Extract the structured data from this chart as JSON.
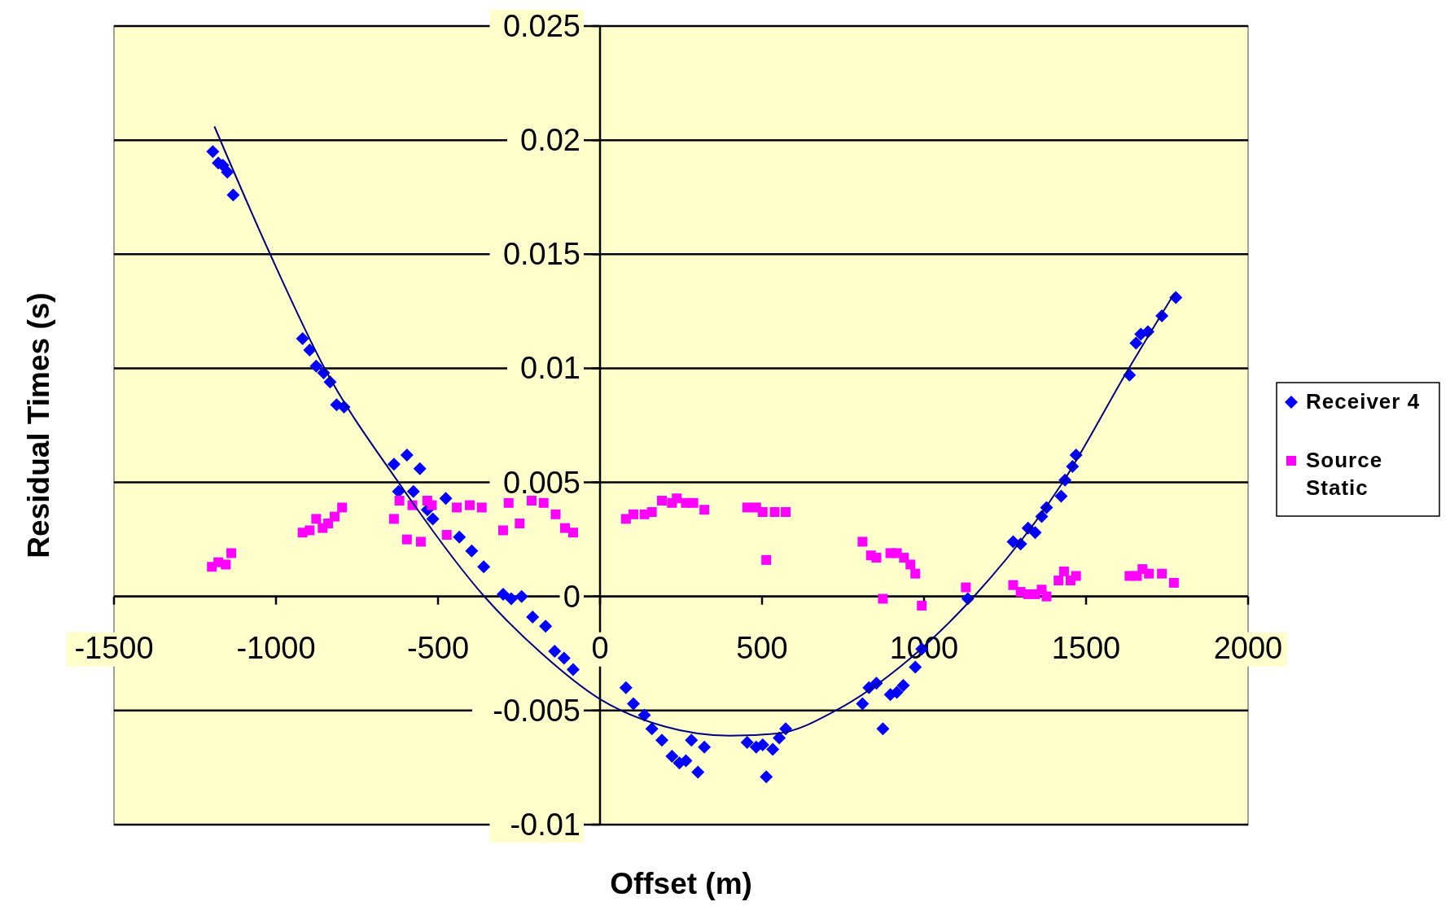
{
  "chart_data": {
    "type": "scatter",
    "xlabel": "Offset (m)",
    "ylabel": "Residual Times (s)",
    "xlim": [
      -1500,
      2000
    ],
    "xticks": [
      -1500,
      -1000,
      -500,
      0,
      500,
      1000,
      1500,
      2000
    ],
    "ylim": [
      -0.01,
      0.025
    ],
    "yticks": [
      -0.01,
      -0.005,
      0,
      0.005,
      0.01,
      0.015,
      0.02,
      0.025
    ],
    "grid": "y",
    "legend": "right",
    "series": [
      {
        "name": "Receiver 4",
        "color": "#0000ff",
        "marker": "diamond",
        "x": [
          -1195,
          -1178,
          -1164,
          -1150,
          -1132,
          -918,
          -896,
          -876,
          -853,
          -833,
          -813,
          -790,
          -636,
          -596,
          -556,
          -622,
          -576,
          -533,
          -516,
          -476,
          -434,
          -396,
          -359,
          -299,
          -274,
          -242,
          -208,
          -168,
          -140,
          -111,
          -83,
          80,
          103,
          137,
          160,
          191,
          222,
          245,
          265,
          282,
          302,
          322,
          454,
          482,
          502,
          513,
          533,
          553,
          573,
          810,
          830,
          853,
          873,
          896,
          916,
          936,
          973,
          993,
          1135,
          1275,
          1298,
          1321,
          1343,
          1363,
          1378,
          1423,
          1435,
          1458,
          1469,
          1634,
          1654,
          1669,
          1691,
          1734,
          1777
        ],
        "values": [
          0.0195,
          0.019,
          0.0189,
          0.0186,
          0.0176,
          0.0113,
          0.0108,
          0.0101,
          0.0098,
          0.0094,
          0.0084,
          0.0083,
          0.0058,
          0.0062,
          0.0056,
          0.0046,
          0.0046,
          0.0038,
          0.0034,
          0.0043,
          0.0026,
          0.002,
          0.0013,
          0.0001,
          -0.0001,
          0.0,
          -0.0009,
          -0.0013,
          -0.0024,
          -0.0027,
          -0.0032,
          -0.004,
          -0.0047,
          -0.0052,
          -0.0058,
          -0.0063,
          -0.007,
          -0.0073,
          -0.0072,
          -0.0063,
          -0.0077,
          -0.0066,
          -0.0064,
          -0.0066,
          -0.0065,
          -0.0079,
          -0.0067,
          -0.0062,
          -0.0058,
          -0.0047,
          -0.004,
          -0.0038,
          -0.0058,
          -0.0043,
          -0.0042,
          -0.0039,
          -0.0031,
          -0.0023,
          -0.0001,
          0.0024,
          0.0023,
          0.003,
          0.0028,
          0.0035,
          0.0039,
          0.0044,
          0.0051,
          0.0057,
          0.0062,
          0.0097,
          0.0111,
          0.0115,
          0.0116,
          0.0123,
          0.0131
        ]
      },
      {
        "name": "Source Static",
        "color": "#ff00ff",
        "marker": "square",
        "x": [
          -1198,
          -1178,
          -1155,
          -1138,
          -918,
          -896,
          -876,
          -856,
          -839,
          -819,
          -796,
          -636,
          -619,
          -596,
          -553,
          -579,
          -533,
          -519,
          -473,
          -442,
          -402,
          -365,
          -299,
          -282,
          -248,
          -211,
          -174,
          -137,
          -108,
          -83,
          80,
          103,
          137,
          160,
          191,
          222,
          237,
          265,
          288,
          322,
          454,
          482,
          502,
          513,
          539,
          573,
          810,
          836,
          853,
          873,
          896,
          916,
          938,
          958,
          973,
          993,
          1129,
          1275,
          1298,
          1321,
          1343,
          1363,
          1378,
          1415,
          1432,
          1452,
          1469,
          1634,
          1657,
          1674,
          1694,
          1734,
          1771
        ],
        "values": [
          0.0013,
          0.0015,
          0.0014,
          0.0019,
          0.0028,
          0.0029,
          0.0034,
          0.003,
          0.0032,
          0.0035,
          0.0039,
          0.0034,
          0.0042,
          0.0025,
          0.0024,
          0.004,
          0.0042,
          0.004,
          0.0027,
          0.0039,
          0.004,
          0.0039,
          0.0029,
          0.0041,
          0.0032,
          0.0042,
          0.0041,
          0.0036,
          0.003,
          0.0028,
          0.0034,
          0.0036,
          0.0036,
          0.0037,
          0.0042,
          0.0041,
          0.0043,
          0.0041,
          0.0041,
          0.0038,
          0.0039,
          0.0039,
          0.0037,
          0.0016,
          0.0037,
          0.0037,
          0.0024,
          0.0018,
          0.0017,
          -0.0001,
          0.0019,
          0.0019,
          0.0017,
          0.0014,
          0.001,
          -0.0004,
          0.0004,
          0.0005,
          0.0002,
          0.0001,
          0.0001,
          0.0003,
          0.0,
          0.0007,
          0.0011,
          0.0007,
          0.0009,
          0.0009,
          0.0009,
          0.0012,
          0.001,
          0.001,
          0.0006
        ]
      },
      {
        "type": "line",
        "color": "#000080",
        "line_style": "solid",
        "x": [
          -1190,
          -1018,
          -850,
          -622,
          -357,
          -180,
          0,
          200,
          400,
          550,
          727,
          950,
          1154,
          1428,
          1632,
          1773
        ],
        "values": [
          0.0206,
          0.015,
          0.01,
          0.005,
          0,
          -0.0025,
          -0.0045,
          -0.0057,
          -0.0061,
          -0.006,
          -0.005,
          -0.0028,
          0,
          0.005,
          0.01,
          0.0133
        ]
      }
    ]
  }
}
